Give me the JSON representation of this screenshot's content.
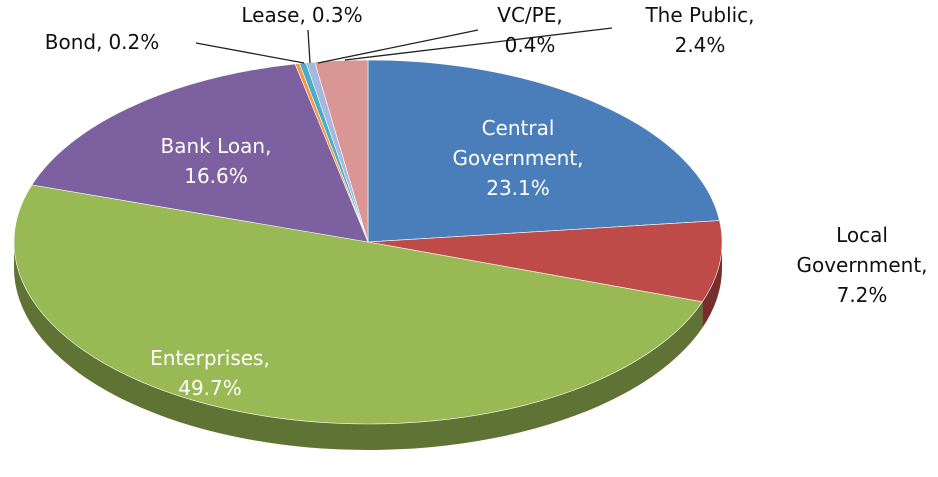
{
  "chart_data": {
    "type": "pie",
    "categories": [
      "Central Government,",
      "Local Government,",
      "Enterprises,",
      "Bank Loan,",
      "Bond,",
      "Lease,",
      "VC/PE,",
      "The Public,"
    ],
    "values": [
      23.1,
      7.2,
      49.7,
      16.6,
      0.2,
      0.3,
      0.4,
      2.4
    ],
    "value_labels": [
      "23.1%",
      "7.2%",
      "49.7%",
      "16.6%",
      "0.2%",
      "0.3%",
      "0.4%",
      "2.4%"
    ],
    "colors": [
      "#4a7ebb",
      "#be4b48",
      "#98b954",
      "#7d60a0",
      "#f79646",
      "#4bacc6",
      "#a5b9e0",
      "#d99694"
    ]
  }
}
